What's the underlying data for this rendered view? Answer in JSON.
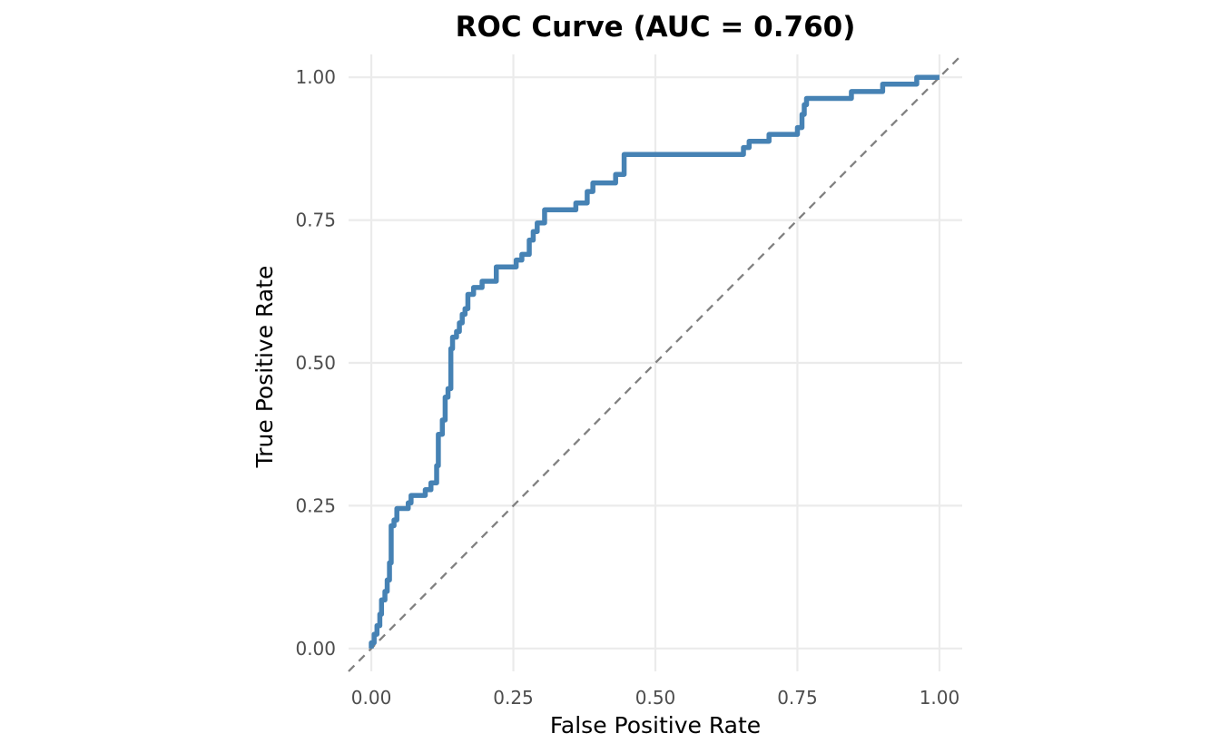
{
  "chart_data": {
    "type": "line",
    "title": "ROC Curve (AUC = 0.760)",
    "xlabel": "False Positive Rate",
    "ylabel": "True Positive Rate",
    "xlim": [
      -0.04,
      1.04
    ],
    "ylim": [
      -0.04,
      1.04
    ],
    "xticks": [
      0.0,
      0.25,
      0.5,
      0.75,
      1.0
    ],
    "yticks": [
      0.0,
      0.25,
      0.5,
      0.75,
      1.0
    ],
    "xtick_labels": [
      "0.00",
      "0.25",
      "0.50",
      "0.75",
      "1.00"
    ],
    "ytick_labels": [
      "0.00",
      "0.25",
      "0.50",
      "0.75",
      "1.00"
    ],
    "grid": true,
    "legend": "none",
    "colors": {
      "curve": "#4682b4",
      "reference": "#808080",
      "grid": "#ebebeb"
    },
    "series": [
      {
        "values": [
          [
            0.0,
            0.0
          ],
          [
            0.0,
            0.01
          ],
          [
            0.005,
            0.01
          ],
          [
            0.005,
            0.025
          ],
          [
            0.01,
            0.025
          ],
          [
            0.01,
            0.04
          ],
          [
            0.015,
            0.04
          ],
          [
            0.015,
            0.06
          ],
          [
            0.018,
            0.06
          ],
          [
            0.018,
            0.085
          ],
          [
            0.024,
            0.085
          ],
          [
            0.024,
            0.1
          ],
          [
            0.028,
            0.1
          ],
          [
            0.028,
            0.12
          ],
          [
            0.032,
            0.12
          ],
          [
            0.032,
            0.15
          ],
          [
            0.035,
            0.15
          ],
          [
            0.035,
            0.215
          ],
          [
            0.04,
            0.215
          ],
          [
            0.04,
            0.225
          ],
          [
            0.045,
            0.225
          ],
          [
            0.045,
            0.245
          ],
          [
            0.065,
            0.245
          ],
          [
            0.065,
            0.255
          ],
          [
            0.07,
            0.255
          ],
          [
            0.07,
            0.268
          ],
          [
            0.095,
            0.268
          ],
          [
            0.095,
            0.278
          ],
          [
            0.105,
            0.278
          ],
          [
            0.105,
            0.29
          ],
          [
            0.115,
            0.29
          ],
          [
            0.115,
            0.32
          ],
          [
            0.118,
            0.32
          ],
          [
            0.118,
            0.375
          ],
          [
            0.125,
            0.375
          ],
          [
            0.125,
            0.4
          ],
          [
            0.13,
            0.4
          ],
          [
            0.13,
            0.44
          ],
          [
            0.135,
            0.44
          ],
          [
            0.135,
            0.455
          ],
          [
            0.14,
            0.455
          ],
          [
            0.14,
            0.525
          ],
          [
            0.143,
            0.525
          ],
          [
            0.143,
            0.545
          ],
          [
            0.15,
            0.545
          ],
          [
            0.15,
            0.555
          ],
          [
            0.155,
            0.555
          ],
          [
            0.155,
            0.57
          ],
          [
            0.16,
            0.57
          ],
          [
            0.16,
            0.585
          ],
          [
            0.165,
            0.585
          ],
          [
            0.165,
            0.595
          ],
          [
            0.17,
            0.595
          ],
          [
            0.17,
            0.62
          ],
          [
            0.18,
            0.62
          ],
          [
            0.18,
            0.632
          ],
          [
            0.195,
            0.632
          ],
          [
            0.195,
            0.643
          ],
          [
            0.22,
            0.643
          ],
          [
            0.22,
            0.668
          ],
          [
            0.255,
            0.668
          ],
          [
            0.255,
            0.68
          ],
          [
            0.265,
            0.68
          ],
          [
            0.265,
            0.69
          ],
          [
            0.278,
            0.69
          ],
          [
            0.278,
            0.715
          ],
          [
            0.285,
            0.715
          ],
          [
            0.285,
            0.73
          ],
          [
            0.292,
            0.73
          ],
          [
            0.292,
            0.745
          ],
          [
            0.305,
            0.745
          ],
          [
            0.305,
            0.768
          ],
          [
            0.36,
            0.768
          ],
          [
            0.36,
            0.78
          ],
          [
            0.38,
            0.78
          ],
          [
            0.38,
            0.8
          ],
          [
            0.39,
            0.8
          ],
          [
            0.39,
            0.815
          ],
          [
            0.43,
            0.815
          ],
          [
            0.43,
            0.83
          ],
          [
            0.445,
            0.83
          ],
          [
            0.445,
            0.865
          ],
          [
            0.655,
            0.865
          ],
          [
            0.655,
            0.877
          ],
          [
            0.665,
            0.877
          ],
          [
            0.665,
            0.888
          ],
          [
            0.7,
            0.888
          ],
          [
            0.7,
            0.9
          ],
          [
            0.75,
            0.9
          ],
          [
            0.75,
            0.912
          ],
          [
            0.758,
            0.912
          ],
          [
            0.758,
            0.935
          ],
          [
            0.762,
            0.935
          ],
          [
            0.762,
            0.952
          ],
          [
            0.766,
            0.952
          ],
          [
            0.766,
            0.963
          ],
          [
            0.845,
            0.963
          ],
          [
            0.845,
            0.975
          ],
          [
            0.9,
            0.975
          ],
          [
            0.9,
            0.988
          ],
          [
            0.96,
            0.988
          ],
          [
            0.96,
            1.0
          ],
          [
            1.0,
            1.0
          ]
        ]
      }
    ],
    "reference_line": {
      "style": "dashed",
      "values": [
        [
          -0.04,
          -0.04
        ],
        [
          1.04,
          1.04
        ]
      ]
    }
  }
}
